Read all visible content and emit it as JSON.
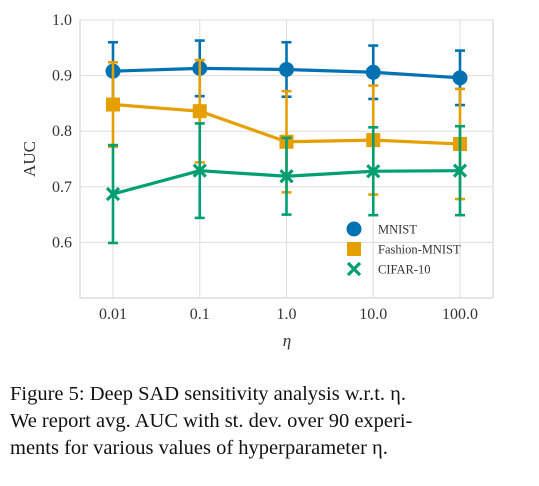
{
  "chart_data": {
    "type": "line",
    "categories": [
      "0.01",
      "0.1",
      "1.0",
      "10.0",
      "100.0"
    ],
    "xlabel": "η",
    "ylabel": "AUC",
    "ylim": [
      0.5,
      1.0
    ],
    "yticks": [
      "0.6",
      "0.7",
      "0.8",
      "0.9",
      "1.0"
    ],
    "ytick_values": [
      0.6,
      0.7,
      0.8,
      0.9,
      1.0
    ],
    "grid": true,
    "legend_position": "lower-right",
    "series": [
      {
        "name": "MNIST",
        "color": "#0072b2",
        "marker": "circle",
        "values": [
          0.908,
          0.913,
          0.911,
          0.906,
          0.896
        ],
        "err": [
          0.052,
          0.05,
          0.049,
          0.048,
          0.049
        ]
      },
      {
        "name": "Fashion-MNIST",
        "color": "#e69f00",
        "marker": "square",
        "values": [
          0.848,
          0.836,
          0.781,
          0.784,
          0.777
        ],
        "err": [
          0.076,
          0.092,
          0.091,
          0.098,
          0.099
        ]
      },
      {
        "name": "CIFAR-10",
        "color": "#009e73",
        "marker": "x",
        "values": [
          0.687,
          0.729,
          0.719,
          0.728,
          0.729
        ],
        "err": [
          0.088,
          0.085,
          0.069,
          0.079,
          0.08
        ]
      }
    ]
  },
  "caption": {
    "line1": "Figure 5: Deep SAD sensitivity analysis w.r.t. η.",
    "line2": "We report avg. AUC with st. dev. over 90 experi-",
    "line3": "ments for various values of hyperparameter η."
  }
}
